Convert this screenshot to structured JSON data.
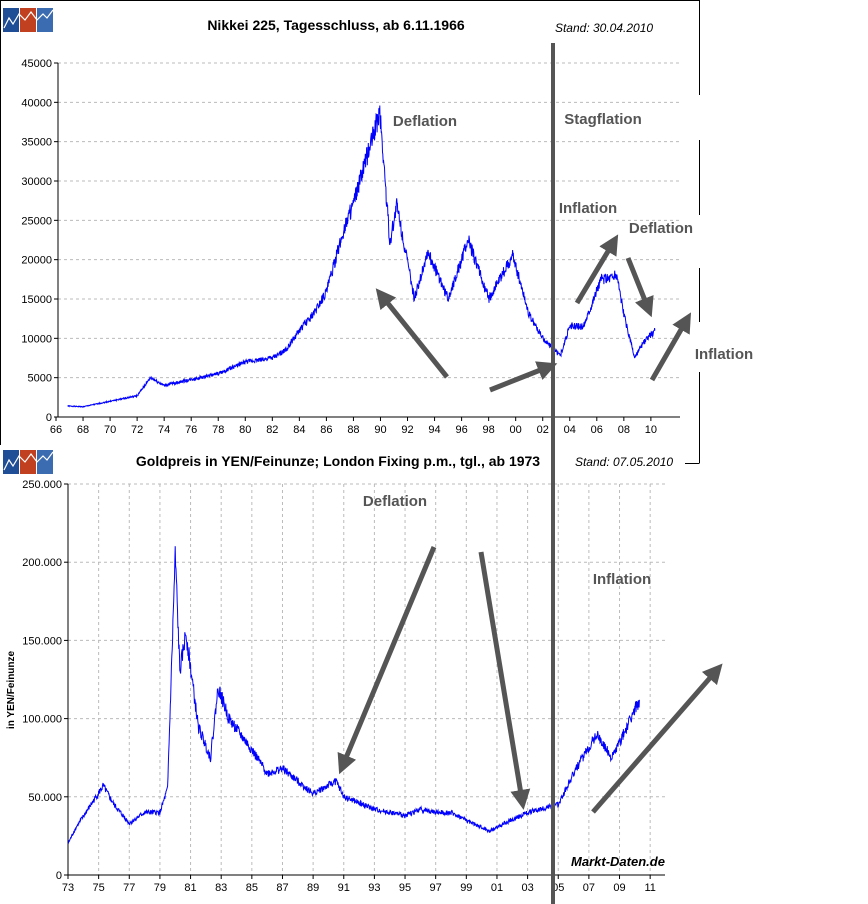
{
  "chart_data": [
    {
      "type": "line",
      "title": "Nikkei 225, Tagesschluss, ab 6.11.1966",
      "stand": "Stand: 30.04.2010",
      "xlim": [
        1966,
        2012
      ],
      "ylim": [
        0,
        45000
      ],
      "xticks": [
        "66",
        "68",
        "70",
        "72",
        "74",
        "76",
        "78",
        "80",
        "82",
        "84",
        "86",
        "88",
        "90",
        "92",
        "94",
        "96",
        "98",
        "00",
        "02",
        "04",
        "06",
        "08",
        "10"
      ],
      "yticks": [
        "0",
        "5000",
        "10000",
        "15000",
        "20000",
        "25000",
        "30000",
        "35000",
        "40000",
        "45000"
      ],
      "grid": "horizontal",
      "color": "#0000ff",
      "points": [
        [
          1966.85,
          1400
        ],
        [
          1968,
          1300
        ],
        [
          1970,
          2000
        ],
        [
          1972,
          2700
        ],
        [
          1973,
          5000
        ],
        [
          1974,
          4000
        ],
        [
          1975,
          4400
        ],
        [
          1978,
          5500
        ],
        [
          1980,
          7000
        ],
        [
          1982,
          7500
        ],
        [
          1983,
          8500
        ],
        [
          1984,
          11000
        ],
        [
          1985,
          13000
        ],
        [
          1986,
          16000
        ],
        [
          1987.5,
          25000
        ],
        [
          1988,
          27000
        ],
        [
          1989.95,
          38900
        ],
        [
          1990.7,
          22000
        ],
        [
          1991.2,
          27000
        ],
        [
          1992.5,
          15000
        ],
        [
          1993.5,
          21000
        ],
        [
          1995,
          15000
        ],
        [
          1996.5,
          22500
        ],
        [
          1998,
          15000
        ],
        [
          1999.8,
          20500
        ],
        [
          2001,
          13000
        ],
        [
          2002,
          10000
        ],
        [
          2003.3,
          7800
        ],
        [
          2004,
          11500
        ],
        [
          2005,
          11500
        ],
        [
          2006.3,
          17500
        ],
        [
          2007.5,
          18000
        ],
        [
          2008,
          13000
        ],
        [
          2008.8,
          7500
        ],
        [
          2009.5,
          9500
        ],
        [
          2010.3,
          11000
        ]
      ],
      "annotations": [
        "Deflation",
        "Stagflation",
        "Inflation",
        "Deflation",
        "Inflation"
      ]
    },
    {
      "type": "line",
      "title": "Goldpreis in  YEN/Feinunze; London Fixing p.m., tgl., ab 1973",
      "stand": "Stand: 07.05.2010",
      "ylabel": "in YEN/Feinunze",
      "xlim": [
        1973,
        2012
      ],
      "ylim": [
        0,
        250000
      ],
      "xticks": [
        "73",
        "75",
        "77",
        "79",
        "81",
        "83",
        "85",
        "87",
        "89",
        "91",
        "93",
        "95",
        "97",
        "99",
        "01",
        "03",
        "05",
        "07",
        "09",
        "11"
      ],
      "yticks": [
        "0",
        "50.000",
        "100.000",
        "150.000",
        "200.000",
        "250.000"
      ],
      "grid": "both",
      "color": "#0000ff",
      "points": [
        [
          1973,
          20000
        ],
        [
          1973.5,
          30000
        ],
        [
          1974.5,
          45000
        ],
        [
          1975.3,
          57000
        ],
        [
          1976,
          45000
        ],
        [
          1977,
          33000
        ],
        [
          1978,
          40000
        ],
        [
          1979,
          40000
        ],
        [
          1979.5,
          55000
        ],
        [
          1980,
          205000
        ],
        [
          1980.3,
          130000
        ],
        [
          1980.7,
          155000
        ],
        [
          1981.5,
          95000
        ],
        [
          1982.3,
          75000
        ],
        [
          1982.8,
          120000
        ],
        [
          1983.5,
          100000
        ],
        [
          1985,
          80000
        ],
        [
          1986,
          65000
        ],
        [
          1987,
          68000
        ],
        [
          1988,
          60000
        ],
        [
          1989,
          52000
        ],
        [
          1990.5,
          60000
        ],
        [
          1991,
          50000
        ],
        [
          1993,
          42000
        ],
        [
          1995,
          38000
        ],
        [
          1996,
          42000
        ],
        [
          1997,
          40000
        ],
        [
          1998,
          40000
        ],
        [
          1999,
          35000
        ],
        [
          2000.5,
          28000
        ],
        [
          2001.5,
          33000
        ],
        [
          2003,
          40000
        ],
        [
          2005,
          45000
        ],
        [
          2006,
          65000
        ],
        [
          2007.5,
          90000
        ],
        [
          2008.5,
          75000
        ],
        [
          2009.5,
          95000
        ],
        [
          2010.3,
          112000
        ]
      ],
      "annotations": [
        "Deflation",
        "Inflation"
      ]
    }
  ],
  "watermark": "Markt-Daten.de"
}
